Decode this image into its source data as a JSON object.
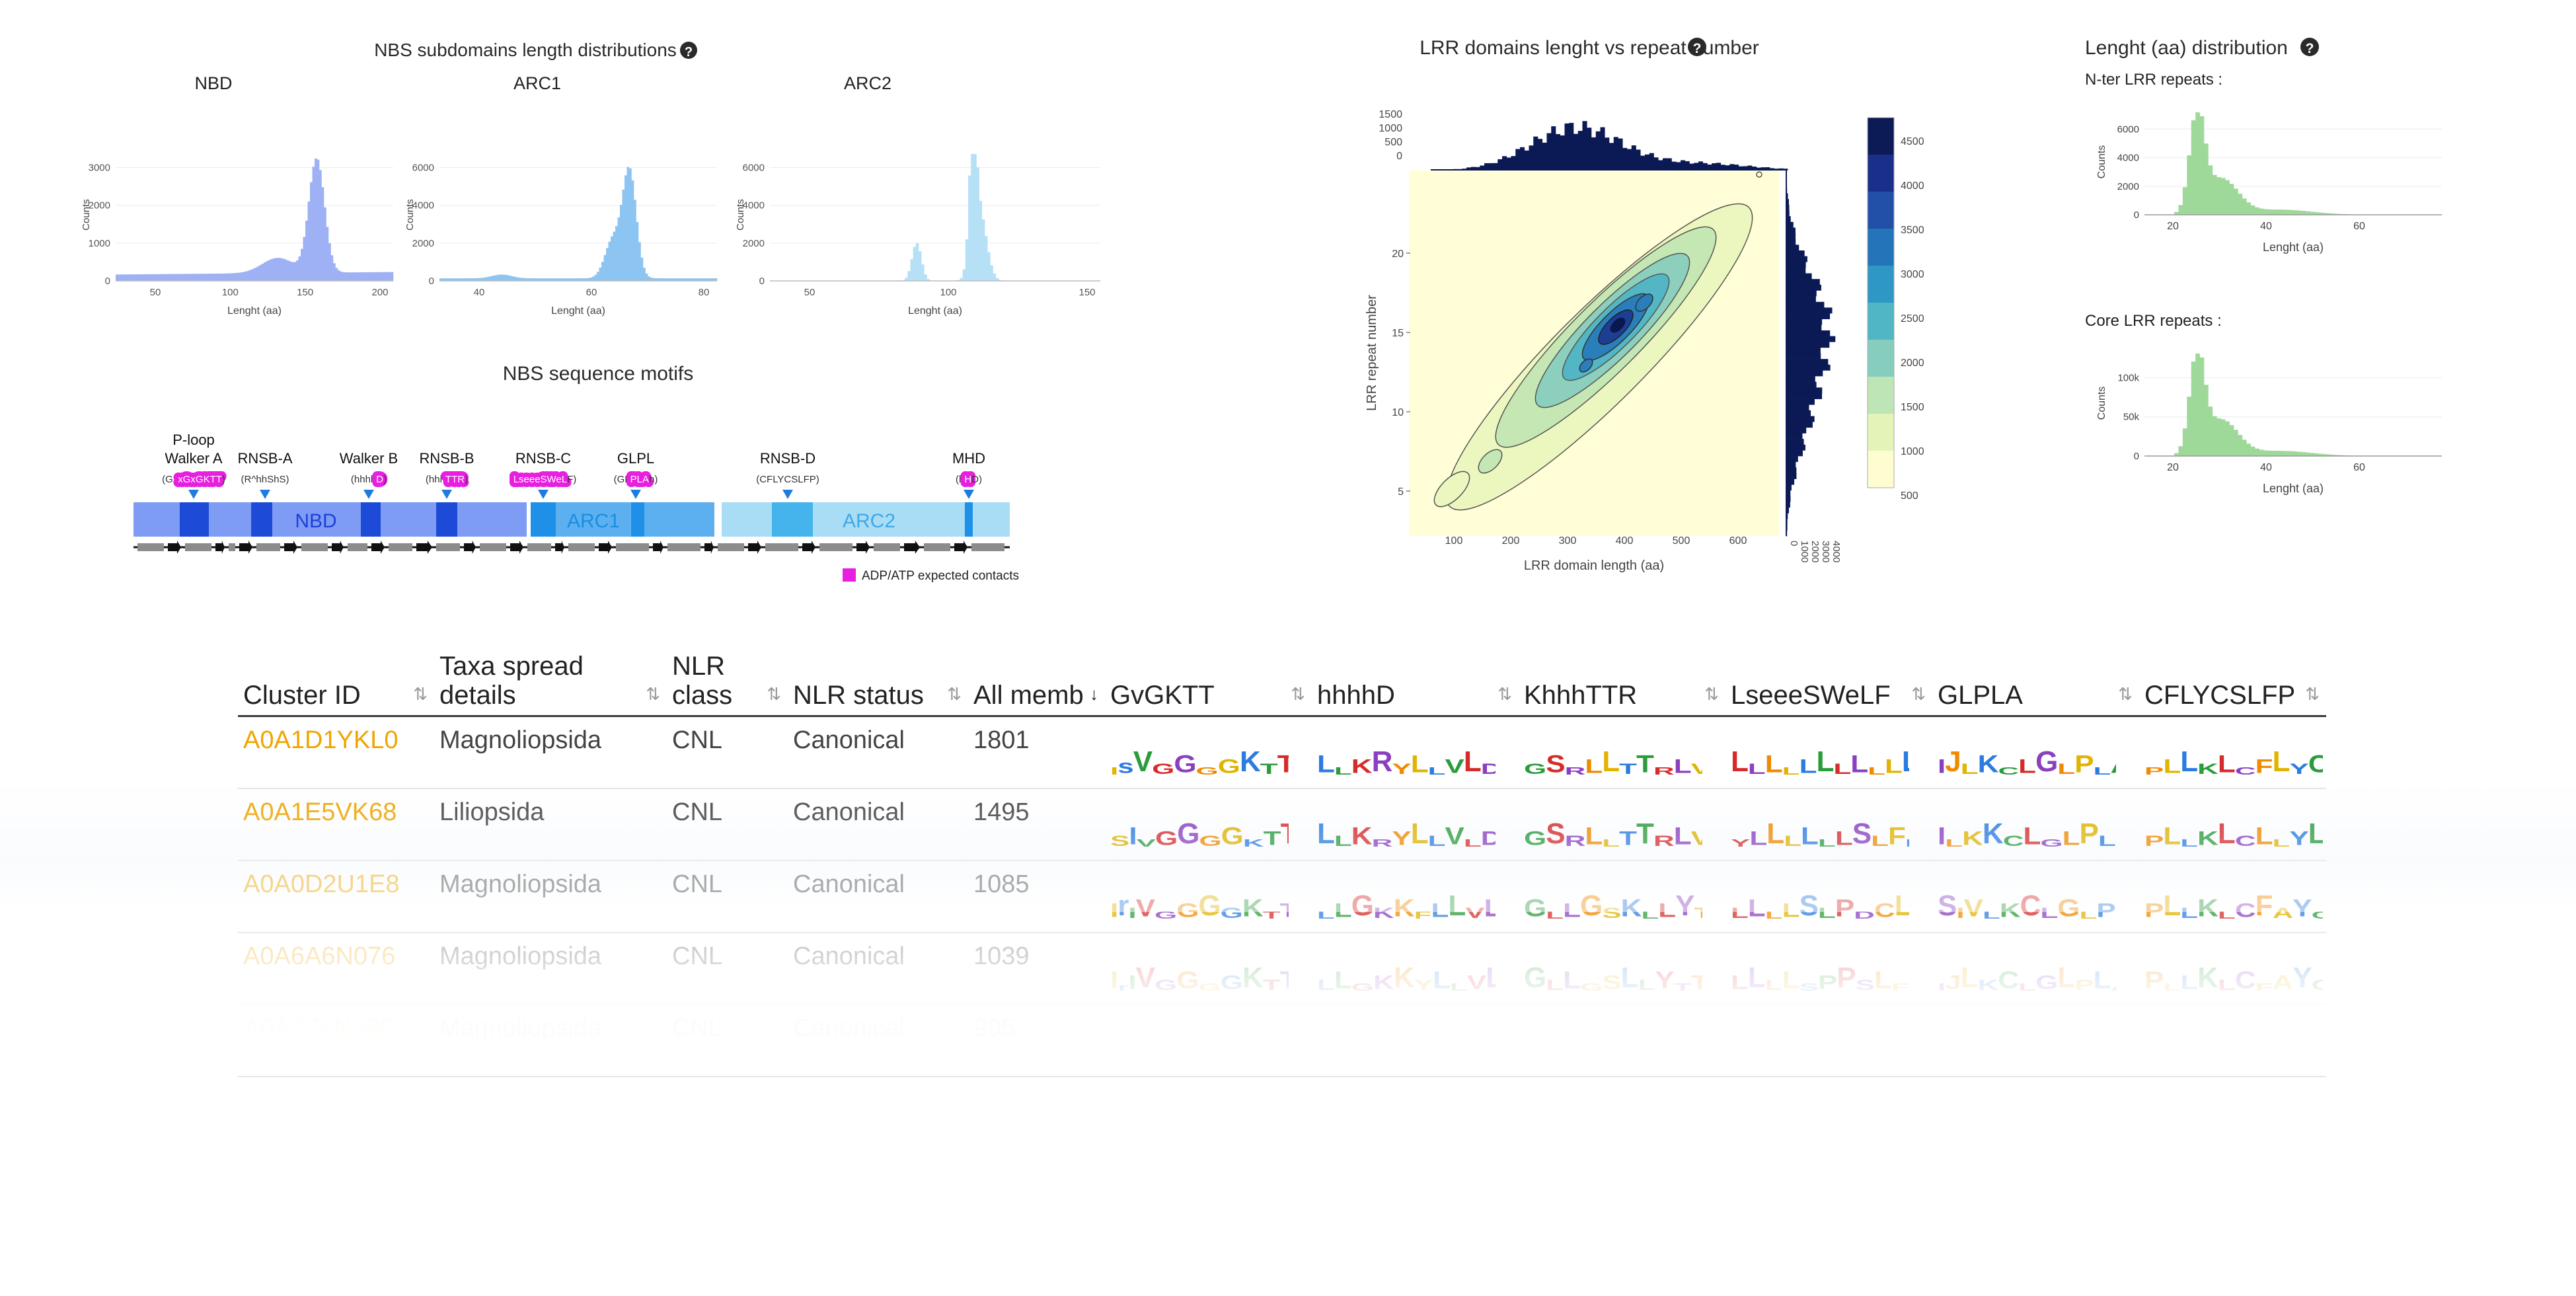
{
  "nbs_hist": {
    "title": "NBS subdomains length distributions",
    "panels": [
      {
        "name": "NBD",
        "ylabel": "Counts",
        "xlabel": "Lenght (aa)",
        "xticks": [
          "50",
          "100",
          "150",
          "200"
        ],
        "yticks": [
          "0",
          "1000",
          "2000",
          "3000"
        ],
        "color": "#9fb1f5"
      },
      {
        "name": "ARC1",
        "ylabel": "Counts",
        "xlabel": "Lenght (aa)",
        "xticks": [
          "40",
          "60",
          "80"
        ],
        "yticks": [
          "0",
          "2000",
          "4000",
          "6000"
        ],
        "color": "#8cc4f2"
      },
      {
        "name": "ARC2",
        "ylabel": "Counts",
        "xlabel": "Lenght (aa)",
        "xticks": [
          "50",
          "100",
          "150"
        ],
        "yticks": [
          "0",
          "2000",
          "4000",
          "6000"
        ],
        "color": "#b6e0f6"
      }
    ]
  },
  "motifs": {
    "title": "NBS sequence motifs",
    "items": [
      {
        "name": "P-loop\nWalker A",
        "seq": "(GxxGxGKTT)",
        "seq_pre": "(Gx",
        "seq_hl": "xGxGKTT",
        "seq_post": ")"
      },
      {
        "name": "RNSB-A",
        "seq": "(R^hhShS)"
      },
      {
        "name": "Walker B",
        "seq": "(hhhhD)",
        "seq_pre": "(hhhh",
        "seq_hl": "D",
        "seq_post": ")"
      },
      {
        "name": "RNSB-B",
        "seq": "(hhhTTR)",
        "seq_pre": "(hhh",
        "seq_hl": "TTR",
        "seq_post": ")"
      },
      {
        "name": "RNSB-C",
        "seq": "(LseeeSWeLF)",
        "seq_pre": "(",
        "seq_hl": "LseeeSWeL",
        "seq_post": "F)"
      },
      {
        "name": "GLPL",
        "seq": "(GLPLAh)",
        "seq_pre": "(GL",
        "seq_hl": "PLA",
        "seq_post": "h)"
      },
      {
        "name": "RNSB-D",
        "seq": "(CFLYCSLFP)"
      },
      {
        "name": "MHD",
        "seq": "(hHD)",
        "seq_pre": "(h",
        "seq_hl": "H",
        "seq_post": "D)"
      }
    ],
    "domains": [
      "NBD",
      "ARC1",
      "ARC2"
    ],
    "legend": "ADP/ATP expected contacts",
    "highlight_color": "#e81ee0"
  },
  "lrr_scatter": {
    "title": "LRR domains lenght vs repeat number",
    "xlabel": "LRR domain length (aa)",
    "ylabel": "LRR repeat number",
    "xticks": [
      "100",
      "200",
      "300",
      "400",
      "500",
      "600"
    ],
    "yticks": [
      "5",
      "10",
      "15",
      "20"
    ],
    "top_yticks": [
      "1500",
      "1000",
      "500",
      "0"
    ],
    "right_xticks": [
      "0",
      "1000",
      "2000",
      "3000",
      "4000"
    ],
    "colorbar_ticks": [
      "4500",
      "4000",
      "3500",
      "3000",
      "2500",
      "2000",
      "1500",
      "1000",
      "500"
    ],
    "colorbar_colors": [
      "#0c1a55",
      "#1a2f8a",
      "#2250a8",
      "#2374b8",
      "#2e97c3",
      "#50b5c4",
      "#86cdbd",
      "#bde5b5",
      "#e4f4b8",
      "#fdfdd0"
    ]
  },
  "lrr_len": {
    "title": "Lenght (aa) distribution",
    "panels": [
      {
        "subtitle": "N-ter LRR repeats :",
        "ylabel": "Counts",
        "xlabel": "Lenght (aa)",
        "xticks": [
          "20",
          "40",
          "60"
        ],
        "yticks": [
          "0",
          "2000",
          "4000",
          "6000"
        ]
      },
      {
        "subtitle": "Core LRR repeats :",
        "ylabel": "Counts",
        "xlabel": "Lenght (aa)",
        "xticks": [
          "20",
          "40",
          "60"
        ],
        "yticks": [
          "0",
          "50k",
          "100k"
        ]
      }
    ],
    "color": "#9ed99a"
  },
  "table": {
    "columns": [
      {
        "label": "Cluster ID",
        "sort": "⇅"
      },
      {
        "label": "Taxa spread details",
        "sort": "⇅"
      },
      {
        "label": "NLR class",
        "sort": "⇅"
      },
      {
        "label": "NLR status",
        "sort": "⇅"
      },
      {
        "label": "All memb",
        "sort": "↓"
      },
      {
        "label": "GvGKTT",
        "sort": "⇅"
      },
      {
        "label": "hhhhD",
        "sort": "⇅"
      },
      {
        "label": "KhhhTTR",
        "sort": "⇅"
      },
      {
        "label": "LseeeSWeLF",
        "sort": "⇅"
      },
      {
        "label": "GLPLA",
        "sort": "⇅"
      },
      {
        "label": "CFLYCSLFP",
        "sort": "⇅"
      }
    ],
    "rows": [
      {
        "id": "A0A1D1YKL0",
        "taxa": "Magnoliopsida",
        "cls": "CNL",
        "status": "Canonical",
        "members": "1801",
        "logos": [
          "IsVGGGGKTTLA",
          "LLKRYLLVLDDVL",
          "GSRLLTTRL V",
          "LLLLLLLLLLLFKK",
          "IJLKCLGLPLAIVS",
          "PLLKLCFLYCSLFPED"
        ]
      },
      {
        "id": "A0A1E5VK68",
        "taxa": "Liliopsida",
        "cls": "CNL",
        "status": "Canonical",
        "members": "1495",
        "logos": [
          "SIVGGGGKTTLA",
          "LLKRYLLVLDDVLS",
          "GSRLLTTRL V",
          "YLLLLLLSLFLR",
          "ILKKCLGLPLAIL",
          "PLLKLCLLYLSLFPED"
        ]
      },
      {
        "id": "A0A0D2U1E8",
        "taxa": "Magnoliopsida",
        "cls": "CNL",
        "status": "Canonical",
        "members": "1085",
        "logos": [
          "IrIVGGGGKTTLAQ",
          "LLGKKFLLVLDDVIN",
          "GLLGSKLLYTTRL V",
          "LLLLSLPDCLLF HA",
          "SIVLKCLGLPLAKTI",
          "PLLKLCFAYCSLFPKDY"
        ]
      },
      {
        "id": "A0A6A6N076",
        "taxa": "Magnoliopsida",
        "cls": "CNL",
        "status": "Canonical",
        "members": "1039",
        "logos": [
          "IrIVGGGGKTTLAQ",
          "LLGKKYLLVLDDVLS",
          "GLLGSLLYTTRSL V",
          "LLLLSPPSLFLA",
          "IJLKCLGLPLAKTI",
          "PLLKLCFAYCSLFPKD"
        ]
      },
      {
        "id": "A0A2Z6N380",
        "taxa": "Magnoliopsida",
        "cls": "CNL",
        "status": "Canonical",
        "members": "995",
        "logos": [
          "",
          "",
          "",
          "",
          "",
          ""
        ]
      }
    ]
  }
}
